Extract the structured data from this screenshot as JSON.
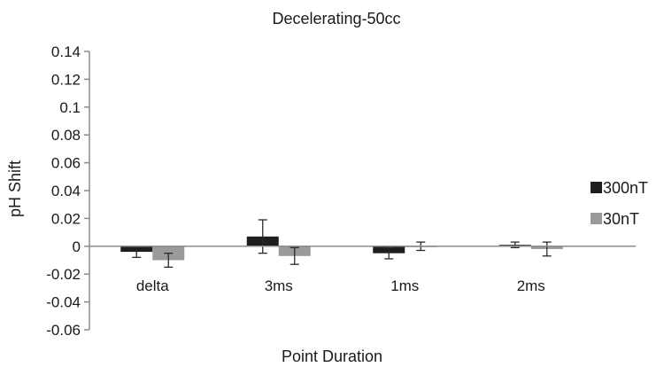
{
  "chart_data": {
    "type": "bar",
    "title": "Decelerating-50cc",
    "xlabel": "Point Duration",
    "ylabel": "pH Shift",
    "categories": [
      "delta",
      "3ms",
      "1ms",
      "2ms"
    ],
    "series": [
      {
        "name": "300nT",
        "color": "#1e1e1e",
        "values": [
          -0.004,
          0.007,
          -0.005,
          0.001
        ],
        "errors": [
          0.004,
          0.012,
          0.004,
          0.002
        ]
      },
      {
        "name": "30nT",
        "color": "#9a9a9a",
        "values": [
          -0.01,
          -0.007,
          0.0,
          -0.002
        ],
        "errors": [
          0.005,
          0.006,
          0.003,
          0.005
        ]
      }
    ],
    "ylim": [
      -0.06,
      0.14
    ],
    "yticks": [
      "0.14",
      "0.12",
      "0.1",
      "0.08",
      "0.06",
      "0.04",
      "0.02",
      "0",
      "-0.02",
      "-0.04",
      "-0.06"
    ],
    "grid": false,
    "legend_position": "right"
  }
}
